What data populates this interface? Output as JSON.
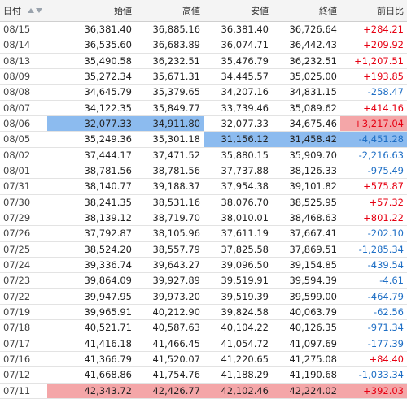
{
  "header": {
    "columns": [
      "日付",
      "始値",
      "高値",
      "安値",
      "終値",
      "前日比"
    ]
  },
  "highlight_colors": {
    "blue": "#8cbbef",
    "red": "#f4a6a8"
  },
  "change_colors": {
    "up": "#e60012",
    "down": "#1f6fc5"
  },
  "table": {
    "rows": [
      {
        "date": "08/15",
        "open": "36,381.40",
        "high": "36,885.16",
        "low": "36,381.40",
        "close": "36,726.64",
        "change": "+284.21"
      },
      {
        "date": "08/14",
        "open": "36,535.60",
        "high": "36,683.89",
        "low": "36,074.71",
        "close": "36,442.43",
        "change": "+209.92"
      },
      {
        "date": "08/13",
        "open": "35,490.58",
        "high": "36,232.51",
        "low": "35,476.79",
        "close": "36,232.51",
        "change": "+1,207.51"
      },
      {
        "date": "08/09",
        "open": "35,272.34",
        "high": "35,671.31",
        "low": "34,445.57",
        "close": "35,025.00",
        "change": "+193.85"
      },
      {
        "date": "08/08",
        "open": "34,645.79",
        "high": "35,379.65",
        "low": "34,207.16",
        "close": "34,831.15",
        "change": "-258.47"
      },
      {
        "date": "08/07",
        "open": "34,122.35",
        "high": "35,849.77",
        "low": "33,739.46",
        "close": "35,089.62",
        "change": "+414.16"
      },
      {
        "date": "08/06",
        "open": "32,077.33",
        "high": "34,911.80",
        "low": "32,077.33",
        "close": "34,675.46",
        "change": "+3,217.04",
        "highlight": {
          "open": "blue",
          "high": "blue",
          "change": "red"
        }
      },
      {
        "date": "08/05",
        "open": "35,249.36",
        "high": "35,301.18",
        "low": "31,156.12",
        "close": "31,458.42",
        "change": "-4,451.28",
        "highlight": {
          "low": "blue",
          "close": "blue",
          "change": "blue"
        }
      },
      {
        "date": "08/02",
        "open": "37,444.17",
        "high": "37,471.52",
        "low": "35,880.15",
        "close": "35,909.70",
        "change": "-2,216.63"
      },
      {
        "date": "08/01",
        "open": "38,781.56",
        "high": "38,781.56",
        "low": "37,737.88",
        "close": "38,126.33",
        "change": "-975.49"
      },
      {
        "date": "07/31",
        "open": "38,140.77",
        "high": "39,188.37",
        "low": "37,954.38",
        "close": "39,101.82",
        "change": "+575.87"
      },
      {
        "date": "07/30",
        "open": "38,241.35",
        "high": "38,531.16",
        "low": "38,076.70",
        "close": "38,525.95",
        "change": "+57.32"
      },
      {
        "date": "07/29",
        "open": "38,139.12",
        "high": "38,719.70",
        "low": "38,010.01",
        "close": "38,468.63",
        "change": "+801.22"
      },
      {
        "date": "07/26",
        "open": "37,792.87",
        "high": "38,105.96",
        "low": "37,611.19",
        "close": "37,667.41",
        "change": "-202.10"
      },
      {
        "date": "07/25",
        "open": "38,524.20",
        "high": "38,557.79",
        "low": "37,825.58",
        "close": "37,869.51",
        "change": "-1,285.34"
      },
      {
        "date": "07/24",
        "open": "39,336.74",
        "high": "39,643.27",
        "low": "39,096.50",
        "close": "39,154.85",
        "change": "-439.54"
      },
      {
        "date": "07/23",
        "open": "39,864.09",
        "high": "39,927.89",
        "low": "39,519.91",
        "close": "39,594.39",
        "change": "-4.61"
      },
      {
        "date": "07/22",
        "open": "39,947.95",
        "high": "39,973.20",
        "low": "39,519.39",
        "close": "39,599.00",
        "change": "-464.79"
      },
      {
        "date": "07/19",
        "open": "39,965.91",
        "high": "40,212.90",
        "low": "39,824.58",
        "close": "40,063.79",
        "change": "-62.56"
      },
      {
        "date": "07/18",
        "open": "40,521.71",
        "high": "40,587.63",
        "low": "40,104.22",
        "close": "40,126.35",
        "change": "-971.34"
      },
      {
        "date": "07/17",
        "open": "41,416.18",
        "high": "41,466.45",
        "low": "41,054.72",
        "close": "41,097.69",
        "change": "-177.39"
      },
      {
        "date": "07/16",
        "open": "41,366.79",
        "high": "41,520.07",
        "low": "41,220.65",
        "close": "41,275.08",
        "change": "+84.40"
      },
      {
        "date": "07/12",
        "open": "41,668.86",
        "high": "41,754.76",
        "low": "41,188.29",
        "close": "41,190.68",
        "change": "-1,033.34"
      },
      {
        "date": "07/11",
        "open": "42,343.72",
        "high": "42,426.77",
        "low": "42,102.46",
        "close": "42,224.02",
        "change": "+392.03",
        "highlight": {
          "open": "red",
          "high": "red",
          "low": "red",
          "close": "red",
          "change": "red"
        }
      }
    ]
  }
}
